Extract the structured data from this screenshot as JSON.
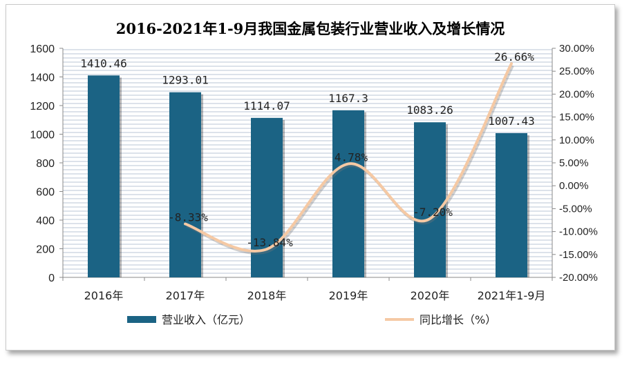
{
  "chart_data": {
    "type": "bar",
    "title": "2016-2021年1-9月我国金属包装行业营业收入及增长情况",
    "categories": [
      "2016年",
      "2017年",
      "2018年",
      "2019年",
      "2020年",
      "2021年1-9月"
    ],
    "series": [
      {
        "name": "营业收入（亿元）",
        "type": "bar",
        "axis": "left",
        "values": [
          1410.46,
          1293.01,
          1114.07,
          1167.3,
          1083.26,
          1007.43
        ],
        "labels": [
          "1410.46",
          "1293.01",
          "1114.07",
          "1167.3",
          "1083.26",
          "1007.43"
        ],
        "color": "#1b6384"
      },
      {
        "name": "同比增长（%）",
        "type": "line",
        "axis": "right",
        "values": [
          null,
          -8.33,
          -13.84,
          4.78,
          -7.2,
          26.66
        ],
        "labels": [
          "",
          "-8.33%",
          "-13.84%",
          "4.78%",
          "-7.20%",
          "26.66%"
        ],
        "color": "#f5c9a4"
      }
    ],
    "left_axis": {
      "ylim": [
        0,
        1600
      ],
      "ticks": [
        "0",
        "200",
        "400",
        "600",
        "800",
        "1000",
        "1200",
        "1400",
        "1600"
      ]
    },
    "right_axis": {
      "ylim": [
        -20,
        30
      ],
      "ticks": [
        "-20.00%",
        "-15.00%",
        "-10.00%",
        "-5.00%",
        "0.00%",
        "5.00%",
        "10.00%",
        "15.00%",
        "20.00%",
        "25.00%",
        "30.00%"
      ]
    },
    "grid": true,
    "legend": "bottom"
  }
}
